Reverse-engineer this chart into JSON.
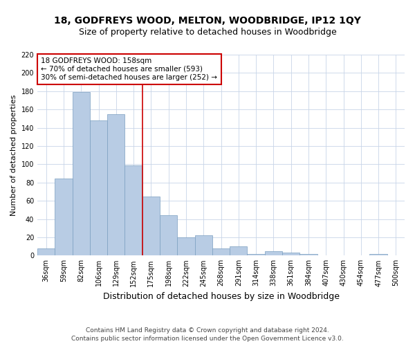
{
  "title": "18, GODFREYS WOOD, MELTON, WOODBRIDGE, IP12 1QY",
  "subtitle": "Size of property relative to detached houses in Woodbridge",
  "xlabel": "Distribution of detached houses by size in Woodbridge",
  "ylabel": "Number of detached properties",
  "footnote1": "Contains HM Land Registry data © Crown copyright and database right 2024.",
  "footnote2": "Contains public sector information licensed under the Open Government Licence v3.0.",
  "categories": [
    "36sqm",
    "59sqm",
    "82sqm",
    "106sqm",
    "129sqm",
    "152sqm",
    "175sqm",
    "198sqm",
    "222sqm",
    "245sqm",
    "268sqm",
    "291sqm",
    "314sqm",
    "338sqm",
    "361sqm",
    "384sqm",
    "407sqm",
    "430sqm",
    "454sqm",
    "477sqm",
    "500sqm"
  ],
  "values": [
    8,
    84,
    179,
    148,
    155,
    99,
    65,
    44,
    20,
    22,
    8,
    10,
    2,
    5,
    3,
    2,
    0,
    0,
    0,
    2,
    0
  ],
  "bar_color": "#b8cce4",
  "bar_edge_color": "#7a9ec0",
  "vline_x": 5.5,
  "vline_color": "#cc0000",
  "annotation_text": "18 GODFREYS WOOD: 158sqm\n← 70% of detached houses are smaller (593)\n30% of semi-detached houses are larger (252) →",
  "annotation_box_color": "#ffffff",
  "annotation_box_edge": "#cc0000",
  "ylim": [
    0,
    220
  ],
  "yticks": [
    0,
    20,
    40,
    60,
    80,
    100,
    120,
    140,
    160,
    180,
    200,
    220
  ],
  "bg_color": "#ffffff",
  "grid_color": "#c8d4e8",
  "title_fontsize": 10,
  "subtitle_fontsize": 9,
  "xlabel_fontsize": 9,
  "ylabel_fontsize": 8,
  "tick_fontsize": 7,
  "annotation_fontsize": 7.5,
  "footnote_fontsize": 6.5
}
